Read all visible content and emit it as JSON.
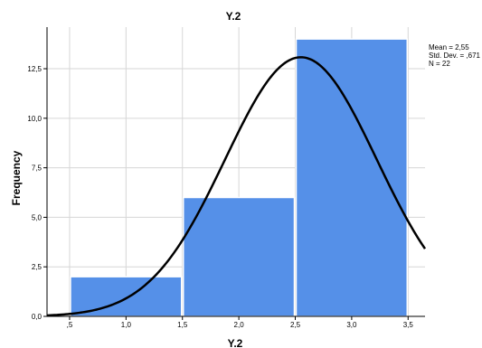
{
  "chart_data": {
    "type": "bar",
    "title": "Y.2",
    "xlabel": "Y.2",
    "ylabel": "Frequency",
    "categories": [
      "1,0",
      "2,0",
      "3,0"
    ],
    "bins": [
      {
        "from": 0.5,
        "to": 1.5,
        "value": 2
      },
      {
        "from": 1.5,
        "to": 2.5,
        "value": 6
      },
      {
        "from": 2.5,
        "to": 3.5,
        "value": 14
      }
    ],
    "values": [
      2,
      6,
      14
    ],
    "xlim": [
      0.3,
      3.65
    ],
    "ylim": [
      0,
      14.6
    ],
    "xticks": [
      0.5,
      1.0,
      1.5,
      2.0,
      2.5,
      3.0,
      3.5
    ],
    "xtick_labels": [
      ",5",
      "1,0",
      "1,5",
      "2,0",
      "2,5",
      "3,0",
      "3,5"
    ],
    "yticks": [
      0,
      2.5,
      5.0,
      7.5,
      10.0,
      12.5
    ],
    "ytick_labels": [
      "0,0",
      "2,5",
      "5,0",
      "7,5",
      "10,0",
      "12,5"
    ],
    "grid": true,
    "bar_color": "#5590e8",
    "curve_color": "#000000",
    "normal_curve": {
      "mean": 2.55,
      "sd": 0.671,
      "n": 22,
      "bin_width": 1
    }
  },
  "stats": {
    "mean_text": "Mean = 2,55",
    "sd_text": "Std. Dev. = ,671",
    "n_text": "N = 22"
  }
}
